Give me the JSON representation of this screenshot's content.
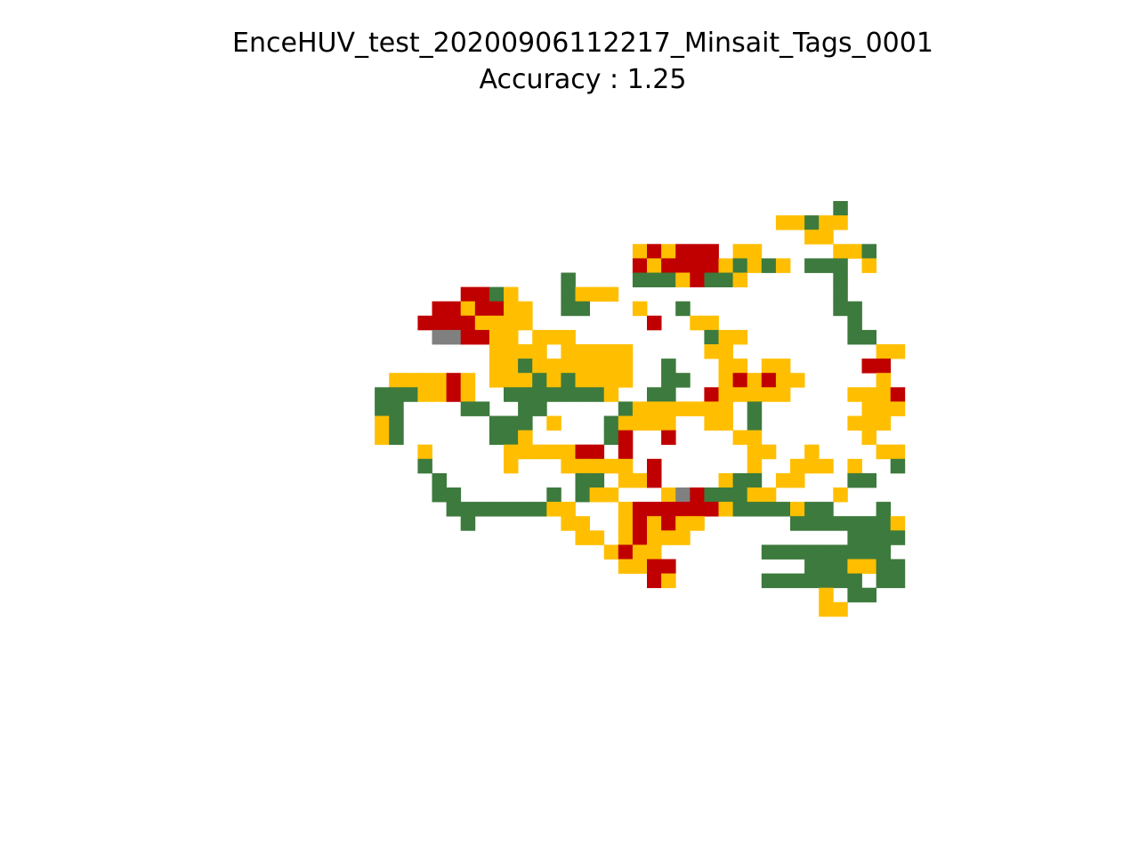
{
  "chart_data": {
    "type": "heatmap",
    "title": "EnceHUV_test_20200906112217_Minsait_Tags_0001",
    "subtitle": "Accuracy : 1.25",
    "grid": false,
    "axes_visible": false,
    "grid_columns": 48,
    "grid_rows": 29,
    "legend": {
      "G": "#3d7a3d",
      "Y": "#ffbf00",
      "R": "#c00000",
      "S": "#808080"
    },
    "cells": [
      "...........................................G....",
      ".......................................YYGYY.....",
      ".........................................YY.....",
      ".............................YRYRRR.YY.....YYG..",
      ".............................RYRRRRYGYGY.GGG.Y..",
      "........................G....GGGYRGGY......G....",
      ".................RRGY...GYYY...............G....",
      "...............RRYRRYY..GG...Y..G..........GG...",
      "..............RRRRYYYY........R..YY.........G...",
      "...............SSRRYY.YYY.........GYY.......GG..",
      "...................YYYY.YYYYY.....YY..........YY",
      "...................YYGYYYYYYY..G...YY.YY.....RR.",
      "............YYYYRY.YYYGYGYYYY..GG..YRYRYY.....Y.",
      "...........GGGYYRY..GGGGGGGY..GG..RYYYYY....YYYR",
      "...........GG....GG..GG.....GYYYYYYY.G.......YYY",
      "...........YG......GGG.Y...GYYYY..YY.G......YYY.",
      "...........YG......GGY.....GR..R....YY.......Y..",
      "..............Y.....YYYYYRR.R........YY..Y....YY",
      "..............G.....Y...YYYYY.R......Y..YYY.Y..G",
      "...............G.........GG.YYR....YGG.YY...GG..",
      "...............GG......G.GYY...YSRGGGYY....Y....",
      "................GGGGGGGYY...YRRRRRRYGGGGYGG...G.",
      ".................G......YY..YRYRYY......GGGGGGGY",
      ".........................YY.YRYYY...........GGGG",
      "...........................YRYY.......GGGGGGGGG.",
      "............................YYRR.........GGGYYGG",
      "..............................RY......GGGGGGG.GG",
      "..........................................Y.GG..",
      "..........................................YY...."
    ]
  }
}
